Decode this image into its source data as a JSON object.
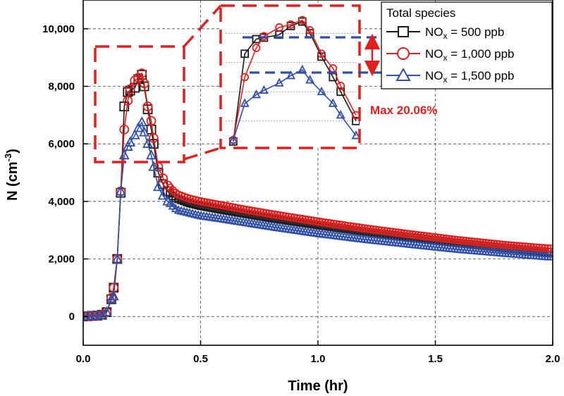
{
  "chart_data": {
    "type": "line",
    "title": "",
    "xlabel": "Time (hr)",
    "ylabel_main": "N (cm",
    "ylabel_sup": "-3",
    "ylabel_close": ")",
    "xlim": [
      0,
      2.0
    ],
    "ylim": [
      -1000,
      11000
    ],
    "xticks": [
      0.0,
      0.5,
      1.0,
      1.5,
      2.0
    ],
    "xtick_labels": [
      "0.0",
      "0.5",
      "1.0",
      "1.5",
      "2.0"
    ],
    "yticks": [
      0,
      2000,
      4000,
      6000,
      8000,
      10000
    ],
    "ytick_labels": [
      "0",
      "2,000",
      "4,000",
      "6,000",
      "8,000",
      "10,000"
    ],
    "grid": true,
    "legend": {
      "title": "Total species",
      "position": "top-right",
      "entries": [
        {
          "pre": "NO",
          "sub": "x",
          "post": " = 500 ppb"
        },
        {
          "pre": "NO",
          "sub": "x",
          "post": " = 1,000 ppb"
        },
        {
          "pre": "NO",
          "sub": "x",
          "post": " = 1,500 ppb"
        }
      ]
    },
    "annotation": "Max 20.06%",
    "inset_x_range": [
      0.15,
      0.32
    ],
    "series": [
      {
        "name": "NOx = 500 ppb",
        "color": "#1a1a1a",
        "marker": "square",
        "x": [
          0.0,
          0.02,
          0.04,
          0.06,
          0.08,
          0.1,
          0.12,
          0.13,
          0.145,
          0.16,
          0.175,
          0.19,
          0.2,
          0.22,
          0.235,
          0.25,
          0.26,
          0.275,
          0.29,
          0.3,
          0.32,
          0.34,
          0.36,
          0.38,
          0.4,
          0.45,
          0.5,
          0.6,
          0.7,
          0.8,
          0.9,
          1.0,
          1.2,
          1.4,
          1.6,
          1.8,
          2.0
        ],
        "y": [
          0,
          10,
          20,
          30,
          60,
          150,
          600,
          1000,
          2000,
          4300,
          7300,
          7800,
          7850,
          7950,
          8250,
          8400,
          8000,
          7200,
          6500,
          6000,
          5000,
          4600,
          4350,
          4200,
          4100,
          3950,
          3850,
          3700,
          3560,
          3420,
          3300,
          3180,
          2950,
          2750,
          2550,
          2380,
          2230
        ]
      },
      {
        "name": "NOx = 1,000 ppb",
        "color": "#e0201e",
        "marker": "circle",
        "x": [
          0.0,
          0.02,
          0.04,
          0.06,
          0.08,
          0.1,
          0.12,
          0.13,
          0.145,
          0.16,
          0.175,
          0.19,
          0.2,
          0.22,
          0.235,
          0.25,
          0.26,
          0.275,
          0.29,
          0.3,
          0.32,
          0.34,
          0.36,
          0.38,
          0.4,
          0.45,
          0.5,
          0.6,
          0.7,
          0.8,
          0.9,
          1.0,
          1.2,
          1.4,
          1.6,
          1.8,
          2.0
        ],
        "y": [
          0,
          10,
          20,
          30,
          60,
          150,
          650,
          1000,
          2000,
          4350,
          6500,
          7500,
          7900,
          8200,
          8300,
          8450,
          8100,
          7300,
          6800,
          6200,
          5200,
          4800,
          4550,
          4400,
          4250,
          4100,
          4000,
          3850,
          3700,
          3560,
          3430,
          3300,
          3060,
          2850,
          2650,
          2480,
          2350
        ]
      },
      {
        "name": "NOx = 1,500 ppb",
        "color": "#2f4fa8",
        "marker": "triangle",
        "x": [
          0.0,
          0.02,
          0.04,
          0.06,
          0.08,
          0.1,
          0.12,
          0.13,
          0.145,
          0.16,
          0.175,
          0.19,
          0.2,
          0.22,
          0.235,
          0.25,
          0.26,
          0.275,
          0.29,
          0.3,
          0.32,
          0.34,
          0.36,
          0.38,
          0.4,
          0.45,
          0.5,
          0.6,
          0.7,
          0.8,
          0.9,
          1.0,
          1.2,
          1.4,
          1.6,
          1.8,
          2.0
        ],
        "y": [
          0,
          10,
          20,
          30,
          60,
          150,
          600,
          700,
          2000,
          4350,
          5600,
          5900,
          6050,
          6300,
          6550,
          6750,
          6400,
          6000,
          5600,
          5200,
          4500,
          4200,
          4000,
          3850,
          3700,
          3600,
          3500,
          3380,
          3250,
          3120,
          3000,
          2880,
          2680,
          2500,
          2330,
          2190,
          2060
        ]
      }
    ]
  }
}
